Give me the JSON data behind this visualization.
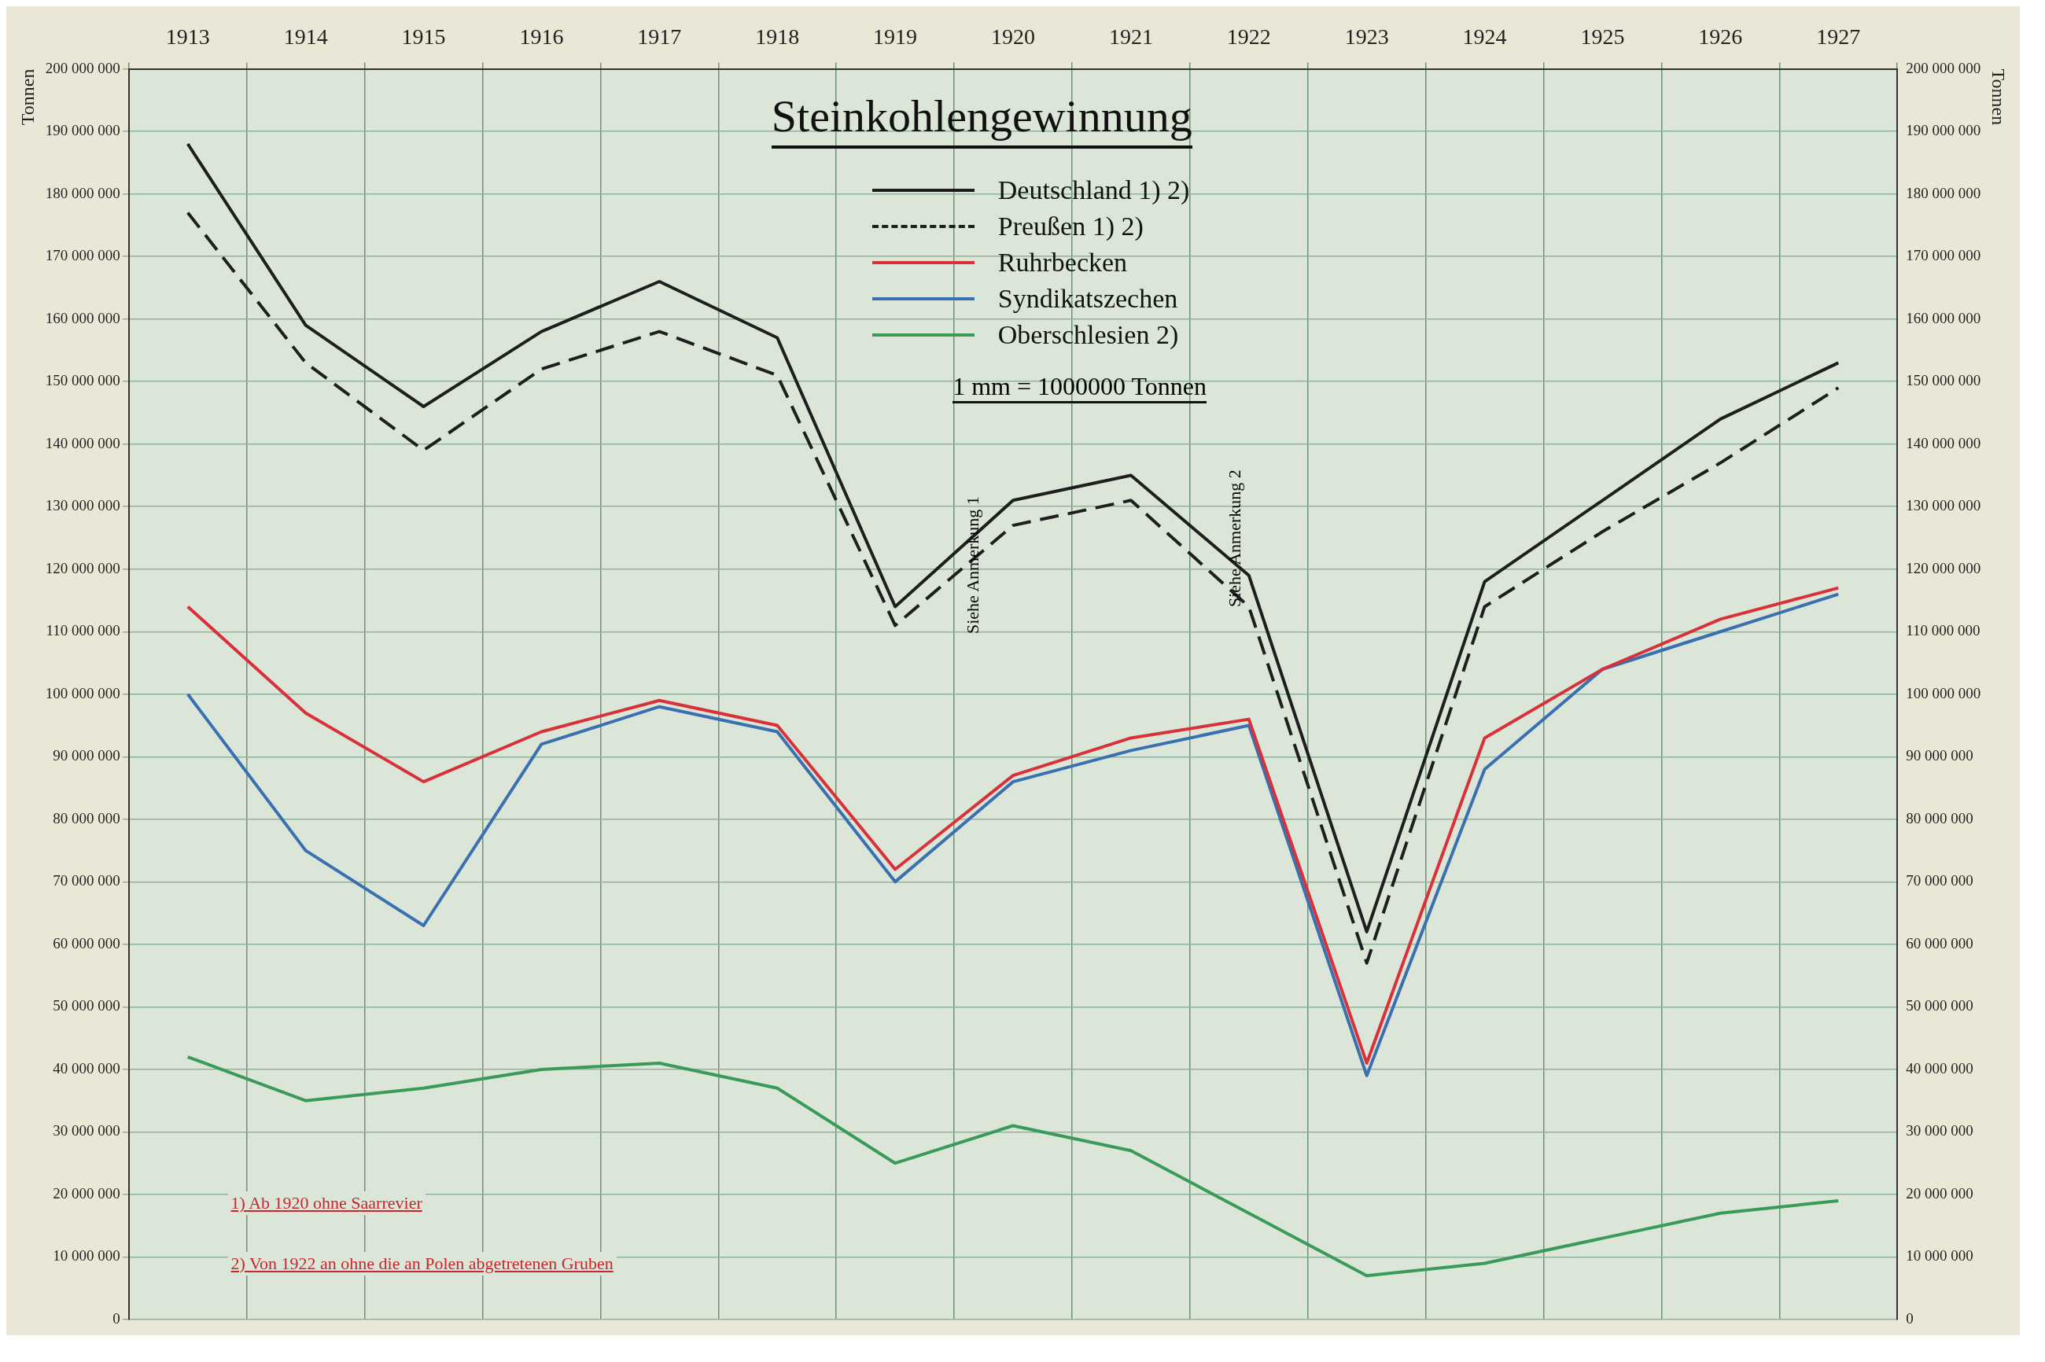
{
  "chart_data": {
    "type": "line",
    "title": "Steinkohlengewinnung",
    "ylabel": "Tonnen",
    "y2label": "Tonnen",
    "categories": [
      "1913",
      "1914",
      "1915",
      "1916",
      "1917",
      "1918",
      "1919",
      "1920",
      "1921",
      "1922",
      "1923",
      "1924",
      "1925",
      "1926",
      "1927"
    ],
    "series": [
      {
        "name": "Deutschland 1) 2)",
        "color": "#1e1e1e",
        "values": [
          188000000,
          159000000,
          146000000,
          158000000,
          166000000,
          157000000,
          114000000,
          131000000,
          135000000,
          119000000,
          62000000,
          118000000,
          131000000,
          144000000,
          153000000
        ]
      },
      {
        "name": "Preußen 1) 2)",
        "color": "#1e1e1e",
        "line_style": "dashed",
        "values": [
          177000000,
          153000000,
          139000000,
          152000000,
          158000000,
          151000000,
          111000000,
          127000000,
          131000000,
          114000000,
          57000000,
          114000000,
          126000000,
          137000000,
          149000000
        ]
      },
      {
        "name": "Ruhrbecken",
        "color": "#d8313a",
        "values": [
          114000000,
          97000000,
          86000000,
          94000000,
          99000000,
          95000000,
          72000000,
          87000000,
          93000000,
          96000000,
          41000000,
          93000000,
          104000000,
          112000000,
          117000000
        ]
      },
      {
        "name": "Syndikatszechen",
        "color": "#3a6fb0",
        "values": [
          100000000,
          75000000,
          63000000,
          92000000,
          98000000,
          94000000,
          70000000,
          86000000,
          91000000,
          95000000,
          39000000,
          88000000,
          104000000,
          110000000,
          116000000
        ]
      },
      {
        "name": "Oberschlesien 2)",
        "color": "#3a9a5a",
        "values": [
          42000000,
          35000000,
          37000000,
          40000000,
          41000000,
          37000000,
          25000000,
          31000000,
          27000000,
          17000000,
          7000000,
          9000000,
          13000000,
          17000000,
          19000000
        ]
      }
    ],
    "ylim": [
      0,
      200000000
    ],
    "y2lim": [
      0,
      200000000
    ],
    "yticks": [
      {
        "value": 0,
        "label": "0"
      },
      {
        "value": 10000000,
        "label": "10 000 000"
      },
      {
        "value": 20000000,
        "label": "20 000 000"
      },
      {
        "value": 30000000,
        "label": "30 000 000"
      },
      {
        "value": 40000000,
        "label": "40 000 000"
      },
      {
        "value": 50000000,
        "label": "50 000 000"
      },
      {
        "value": 60000000,
        "label": "60 000 000"
      },
      {
        "value": 70000000,
        "label": "70 000 000"
      },
      {
        "value": 80000000,
        "label": "80 000 000"
      },
      {
        "value": 90000000,
        "label": "90 000 000"
      },
      {
        "value": 100000000,
        "label": "100 000 000"
      },
      {
        "value": 110000000,
        "label": "110 000 000"
      },
      {
        "value": 120000000,
        "label": "120 000 000"
      },
      {
        "value": 130000000,
        "label": "130 000 000"
      },
      {
        "value": 140000000,
        "label": "140 000 000"
      },
      {
        "value": 150000000,
        "label": "150 000 000"
      },
      {
        "value": 160000000,
        "label": "160 000 000"
      },
      {
        "value": 170000000,
        "label": "170 000 000"
      },
      {
        "value": 180000000,
        "label": "180 000 000"
      },
      {
        "value": 190000000,
        "label": "190 000 000"
      },
      {
        "value": 200000000,
        "label": "200 000 000"
      }
    ],
    "y2ticks": [
      {
        "value": 0,
        "label": "0"
      },
      {
        "value": 10000000,
        "label": "10 000 000"
      },
      {
        "value": 20000000,
        "label": "20 000 000"
      },
      {
        "value": 30000000,
        "label": "30 000 000"
      },
      {
        "value": 40000000,
        "label": "40 000 000"
      },
      {
        "value": 50000000,
        "label": "50 000 000"
      },
      {
        "value": 60000000,
        "label": "60 000 000"
      },
      {
        "value": 70000000,
        "label": "70 000 000"
      },
      {
        "value": 80000000,
        "label": "80 000 000"
      },
      {
        "value": 90000000,
        "label": "90 000 000"
      },
      {
        "value": 100000000,
        "label": "100 000 000"
      },
      {
        "value": 110000000,
        "label": "110 000 000"
      },
      {
        "value": 120000000,
        "label": "120 000 000"
      },
      {
        "value": 130000000,
        "label": "130 000 000"
      },
      {
        "value": 140000000,
        "label": "140 000 000"
      },
      {
        "value": 150000000,
        "label": "150 000 000"
      },
      {
        "value": 160000000,
        "label": "160 000 000"
      },
      {
        "value": 170000000,
        "label": "170 000 000"
      },
      {
        "value": 180000000,
        "label": "180 000 000"
      },
      {
        "value": 190000000,
        "label": "190 000 000"
      },
      {
        "value": 200000000,
        "label": "200 000 000"
      }
    ],
    "annotations": [
      "1 mm = 1000000 Tonnen",
      "Siehe Anmerkung 1",
      "Siehe Anmerkung 2",
      "1) Ab 1920 ohne Saarrevier",
      "2) Von 1922 an ohne die an Polen abgetretenen Gruben"
    ],
    "grid": true,
    "legend": "top",
    "marker": "none",
    "line_style": "solid"
  }
}
